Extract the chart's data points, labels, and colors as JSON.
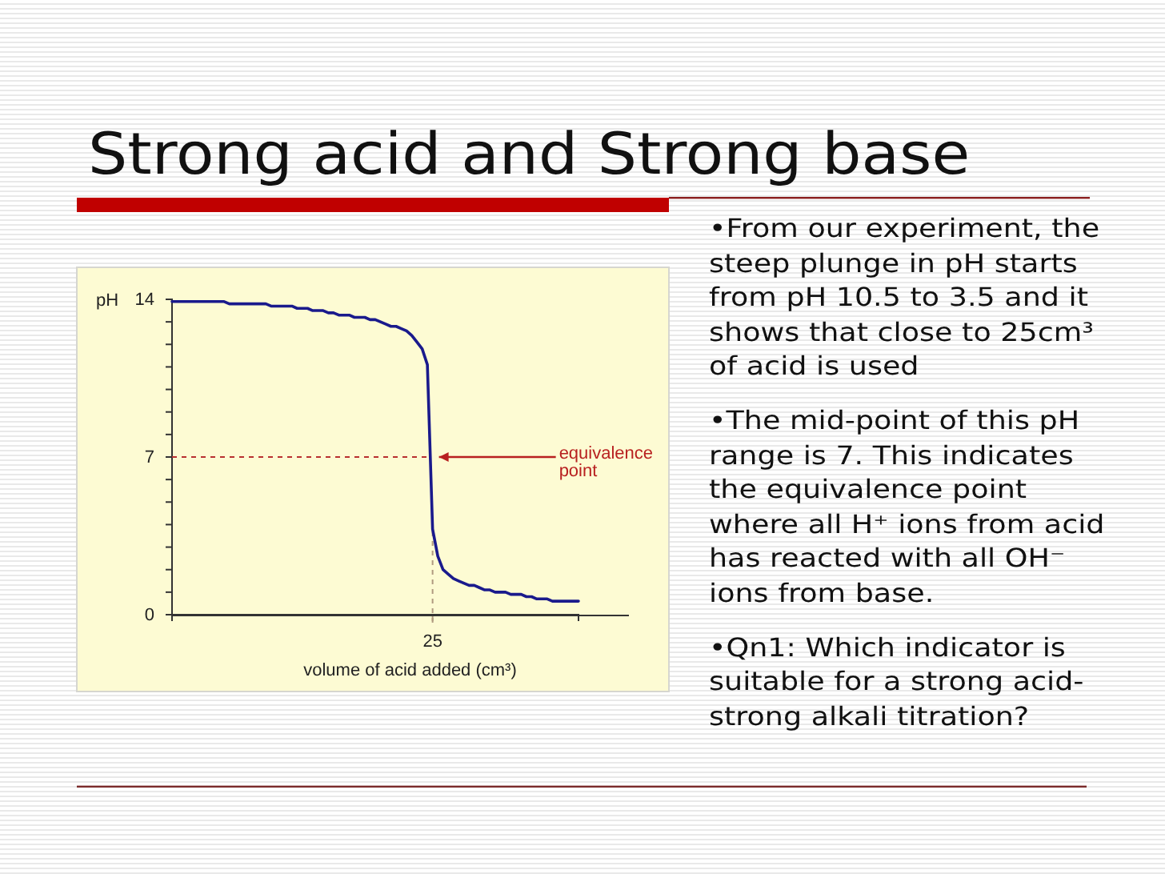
{
  "chart_data": {
    "type": "line",
    "title": "Strong acid and Strong base",
    "xlabel": "volume of acid added (cm³)",
    "ylabel": "pH",
    "categories": [
      null,
      null,
      null,
      null,
      null,
      null,
      null,
      null,
      null,
      null,
      null,
      null,
      null,
      null,
      null,
      null,
      null,
      null,
      null,
      null,
      null,
      null,
      null,
      null,
      null,
      null,
      null,
      null,
      null,
      null,
      null,
      null,
      null,
      null,
      null,
      null,
      null,
      null,
      null,
      null,
      null,
      null,
      null,
      null,
      null,
      null,
      null,
      null,
      null,
      null,
      "25",
      null,
      null,
      null,
      null,
      null,
      null,
      null,
      null,
      null,
      null,
      null,
      null,
      null,
      null,
      null,
      null,
      null,
      null,
      null,
      null,
      null,
      null,
      null,
      null,
      null,
      null,
      null,
      null
    ],
    "series": [
      {
        "color": "#1a1a8c",
        "values": [
          13.9,
          13.9,
          13.9,
          13.9,
          13.9,
          13.9,
          13.9,
          13.9,
          13.9,
          13.9,
          13.9,
          13.8,
          13.8,
          13.8,
          13.8,
          13.8,
          13.8,
          13.8,
          13.8,
          13.7,
          13.7,
          13.7,
          13.7,
          13.7,
          13.6,
          13.6,
          13.6,
          13.5,
          13.5,
          13.5,
          13.4,
          13.4,
          13.3,
          13.3,
          13.3,
          13.2,
          13.2,
          13.2,
          13.1,
          13.1,
          13.0,
          12.9,
          12.8,
          12.8,
          12.7,
          12.6,
          12.4,
          12.1,
          11.8,
          11.1,
          3.8,
          2.6,
          2.0,
          1.8,
          1.6,
          1.5,
          1.4,
          1.3,
          1.3,
          1.2,
          1.1,
          1.1,
          1.0,
          1.0,
          1.0,
          0.9,
          0.9,
          0.9,
          0.8,
          0.8,
          0.7,
          0.7,
          0.7,
          0.6,
          0.6,
          0.6,
          0.6,
          0.6,
          0.6
        ]
      }
    ],
    "ylim": [
      0,
      14
    ],
    "yticks": [
      0,
      {
        "value": 1,
        "label": null
      },
      {
        "value": 2,
        "label": null
      },
      {
        "value": 3,
        "label": null
      },
      {
        "value": 4,
        "label": null
      },
      {
        "value": 5,
        "label": null
      },
      {
        "value": 6,
        "label": null
      },
      7,
      {
        "value": 8,
        "label": null
      },
      {
        "value": 9,
        "label": null
      },
      {
        "value": 10,
        "label": null
      },
      {
        "value": 11,
        "label": null
      },
      {
        "value": 12,
        "label": null
      },
      {
        "value": 13,
        "label": null
      },
      14
    ],
    "ref_lines": [
      {
        "axis": "y",
        "value": 7,
        "color": "#b83030",
        "line_style": "dashed"
      },
      {
        "axis": "x",
        "value": "25",
        "color": "#b09a80",
        "line_style": "dashed"
      }
    ],
    "annotations": [
      {
        "text": "equivalence point",
        "x": "25",
        "y": 7
      },
      "•From our experiment, the steep plunge in pH starts from pH 10.5 to 3.5 and it shows that close to 25cm³ of acid is used",
      "•The mid-point of this pH range is 7. This indicates the equivalence point where all H⁺ ions from acid has reacted with all OH⁻ ions from base.",
      "•Qn1: Which indicator is suitable for a strong acid-strong alkali titration?"
    ]
  }
}
